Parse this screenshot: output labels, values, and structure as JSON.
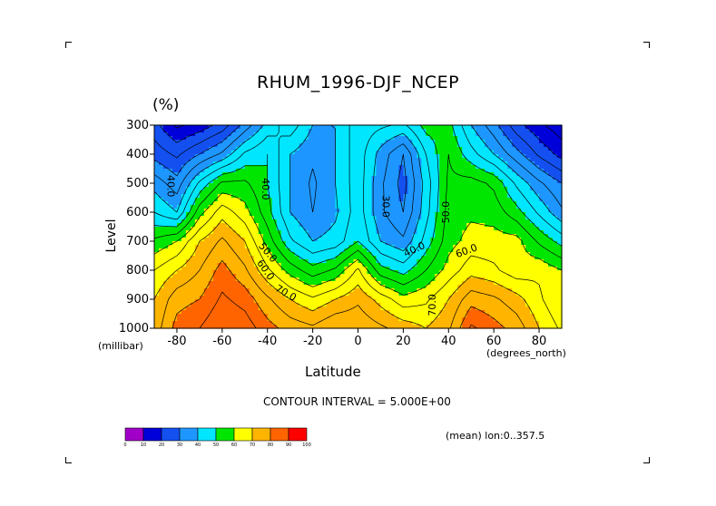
{
  "chart_data": {
    "type": "heatmap",
    "title": "RHUM_1996-DJF_NCEP",
    "unit": "(%)",
    "xlabel": "Latitude",
    "ylabel": "Level",
    "xunits": "(degrees_north)",
    "yunits": "(millibar)",
    "xlim": [
      -90,
      90
    ],
    "ylim": [
      1000,
      300
    ],
    "xticks": [
      "-80",
      "-60",
      "-40",
      "-20",
      "0",
      "20",
      "40",
      "60",
      "80"
    ],
    "yticks": [
      "300",
      "400",
      "500",
      "600",
      "700",
      "800",
      "900",
      "1000"
    ],
    "contour_interval_note": "CONTOUR INTERVAL = 5.000E+00",
    "mean_note": "(mean) lon:0..357.5",
    "colorbar_labels": [
      "0",
      "10",
      "20",
      "30",
      "40",
      "50",
      "60",
      "70",
      "80",
      "90",
      "100"
    ],
    "colorbar_colors": [
      "#a000c8",
      "#0000d8",
      "#1450f0",
      "#1e96ff",
      "#00e6ff",
      "#00e600",
      "#ffff00",
      "#ffb400",
      "#ff6400",
      "#ff0000"
    ],
    "contour_labels": [
      "40.0",
      "40.0",
      "30.0",
      "40.0",
      "50.0",
      "50.0",
      "60.0",
      "60.0",
      "70.0",
      "70.0"
    ],
    "levels": [
      300,
      400,
      500,
      600,
      700,
      800,
      900,
      1000
    ],
    "latitudes": [
      -90,
      -80,
      -70,
      -60,
      -50,
      -40,
      -30,
      -20,
      -10,
      0,
      10,
      20,
      30,
      40,
      50,
      60,
      70,
      80,
      90
    ],
    "values": [
      [
        22,
        14,
        17,
        22,
        32,
        42,
        48,
        40,
        40,
        48,
        46,
        44,
        52,
        52,
        40,
        32,
        22,
        16,
        12
      ],
      [
        28,
        24,
        30,
        36,
        46,
        50,
        40,
        36,
        40,
        48,
        38,
        30,
        45,
        55,
        47,
        40,
        32,
        24,
        18
      ],
      [
        38,
        32,
        46,
        56,
        56,
        50,
        40,
        34,
        40,
        48,
        36,
        28,
        42,
        56,
        57,
        54,
        44,
        36,
        30
      ],
      [
        45,
        40,
        58,
        68,
        62,
        52,
        40,
        35,
        39,
        48,
        36,
        30,
        43,
        57,
        59,
        58,
        52,
        44,
        36
      ],
      [
        56,
        60,
        70,
        76,
        70,
        58,
        46,
        40,
        42,
        50,
        40,
        36,
        47,
        58,
        62,
        62,
        62,
        54,
        48
      ],
      [
        65,
        70,
        75,
        82,
        76,
        66,
        58,
        52,
        56,
        66,
        52,
        48,
        55,
        62,
        68,
        66,
        62,
        64,
        60
      ],
      [
        70,
        78,
        80,
        86,
        83,
        76,
        70,
        66,
        70,
        74,
        68,
        62,
        64,
        70,
        78,
        76,
        72,
        66,
        60
      ],
      [
        72,
        82,
        85,
        90,
        88,
        82,
        78,
        76,
        80,
        79,
        76,
        73,
        70,
        74,
        86,
        82,
        78,
        70,
        64
      ]
    ]
  }
}
